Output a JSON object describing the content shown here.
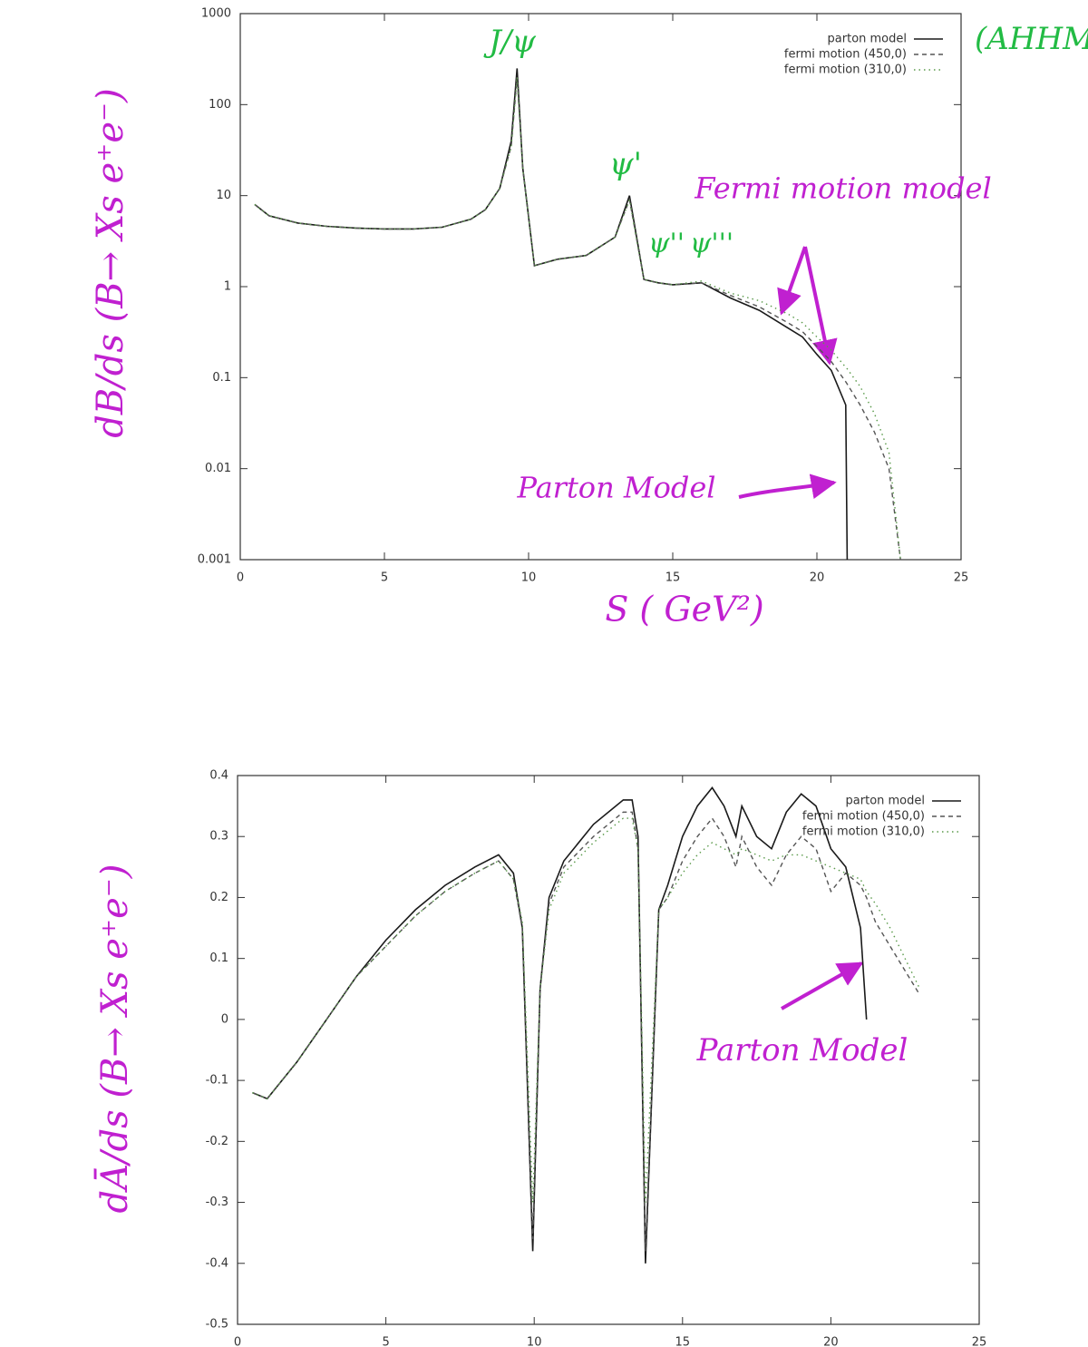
{
  "chart_data": [
    {
      "type": "line",
      "log_y": true,
      "legend": "upper right",
      "x_label": "S ( GeV²)",
      "y_label": "dB/ds (B→ Xs e⁺e⁻)",
      "annotations": [
        "J/ψ",
        "ψ'",
        "ψ''",
        "ψ'''",
        "Fermi motion model",
        "Parton Model",
        "(AHHM"
      ],
      "xlim": [
        0,
        25
      ],
      "xticks": [
        0,
        5,
        10,
        15,
        20,
        25
      ],
      "ylim": [
        0.001,
        1000
      ],
      "yticks": [
        1000,
        100,
        10,
        1,
        0.1,
        0.01,
        0.001
      ],
      "x": [
        0.5,
        1,
        2,
        3,
        4,
        5,
        6,
        7,
        8,
        8.5,
        9,
        9.4,
        9.6,
        9.8,
        10.2,
        11,
        12,
        13,
        13.5,
        14,
        14.5,
        15,
        16,
        17,
        18,
        19,
        19.5,
        20,
        20.5,
        21,
        21.05,
        21.5,
        22,
        22.5,
        22.9
      ],
      "series": [
        {
          "name": "parton model",
          "color": "#1a1a1a",
          "values": [
            8,
            6,
            5,
            4.6,
            4.4,
            4.3,
            4.3,
            4.5,
            5.5,
            7,
            12,
            40,
            250,
            20,
            1.7,
            2,
            2.2,
            3.5,
            10,
            1.2,
            1.1,
            1.05,
            1.1,
            0.75,
            0.55,
            0.35,
            0.28,
            0.18,
            0.12,
            0.05,
            0.001,
            null,
            null,
            null,
            null
          ]
        },
        {
          "name": "fermi motion (450,0)",
          "color": "#555555",
          "values": [
            8,
            6,
            5,
            4.6,
            4.4,
            4.3,
            4.3,
            4.5,
            5.5,
            7,
            12,
            35,
            200,
            20,
            1.7,
            2,
            2.2,
            3.5,
            9,
            1.2,
            1.1,
            1.05,
            1.1,
            0.8,
            0.6,
            0.4,
            0.32,
            0.22,
            0.15,
            0.09,
            0.085,
            0.05,
            0.025,
            0.01,
            0.001
          ]
        },
        {
          "name": "fermi motion (310,0)",
          "color": "#5a9a4a",
          "values": [
            8,
            6,
            5,
            4.6,
            4.4,
            4.3,
            4.3,
            4.5,
            5.5,
            7,
            12,
            35,
            200,
            20,
            1.7,
            2,
            2.2,
            3.5,
            9,
            1.2,
            1.1,
            1.05,
            1.15,
            0.85,
            0.7,
            0.5,
            0.4,
            0.28,
            0.2,
            0.13,
            0.125,
            0.08,
            0.04,
            0.015,
            0.001
          ]
        }
      ]
    },
    {
      "type": "line",
      "log_y": false,
      "legend": "upper right",
      "y_label": "dĀ/ds (B→ Xs e⁺e⁻)",
      "annotations": [
        "Parton Model"
      ],
      "xlim": [
        0,
        25
      ],
      "xticks": [
        0,
        5,
        10,
        15,
        20,
        25
      ],
      "ylim": [
        -0.5,
        0.4
      ],
      "yticks": [
        0.4,
        0.3,
        0.2,
        0.1,
        0,
        -0.1,
        -0.2,
        -0.3,
        -0.4,
        -0.5
      ],
      "x": [
        0.5,
        1,
        2,
        3,
        4,
        5,
        6,
        7,
        8,
        8.8,
        9.3,
        9.6,
        9.95,
        10.2,
        10.5,
        11,
        12,
        13,
        13.3,
        13.5,
        13.75,
        14.2,
        14.5,
        15,
        15.5,
        16,
        16.4,
        16.8,
        17,
        17.5,
        18,
        18.5,
        19,
        19.5,
        20,
        20.5,
        21,
        21.2,
        21.5,
        22,
        22.5,
        23
      ],
      "series": [
        {
          "name": "parton model",
          "color": "#1a1a1a",
          "values": [
            -0.12,
            -0.13,
            -0.07,
            0,
            0.07,
            0.13,
            0.18,
            0.22,
            0.25,
            0.27,
            0.24,
            0.15,
            -0.38,
            0.05,
            0.2,
            0.26,
            0.32,
            0.36,
            0.36,
            0.3,
            -0.4,
            0.18,
            0.22,
            0.3,
            0.35,
            0.38,
            0.35,
            0.3,
            0.35,
            0.3,
            0.28,
            0.34,
            0.37,
            0.35,
            0.28,
            0.25,
            0.15,
            0,
            null,
            null,
            null,
            null
          ]
        },
        {
          "name": "fermi motion (450,0)",
          "color": "#555555",
          "values": [
            -0.12,
            -0.13,
            -0.07,
            0,
            0.07,
            0.12,
            0.17,
            0.21,
            0.24,
            0.26,
            0.23,
            0.15,
            -0.36,
            0.05,
            0.19,
            0.25,
            0.3,
            0.34,
            0.34,
            0.28,
            -0.38,
            0.18,
            0.2,
            0.26,
            0.3,
            0.33,
            0.3,
            0.25,
            0.3,
            0.25,
            0.22,
            0.27,
            0.3,
            0.28,
            0.21,
            0.24,
            0.22,
            0.2,
            0.16,
            0.12,
            0.08,
            0.04
          ]
        },
        {
          "name": "fermi motion (310,0)",
          "color": "#5a9a4a",
          "values": [
            -0.12,
            -0.13,
            -0.07,
            0,
            0.07,
            0.12,
            0.17,
            0.21,
            0.24,
            0.26,
            0.23,
            0.16,
            -0.3,
            0.05,
            0.18,
            0.24,
            0.29,
            0.33,
            0.33,
            0.28,
            -0.3,
            0.18,
            0.2,
            0.24,
            0.27,
            0.29,
            0.28,
            0.27,
            0.28,
            0.27,
            0.26,
            0.27,
            0.27,
            0.26,
            0.25,
            0.24,
            0.23,
            0.21,
            0.19,
            0.15,
            0.1,
            0.05
          ]
        }
      ]
    }
  ]
}
